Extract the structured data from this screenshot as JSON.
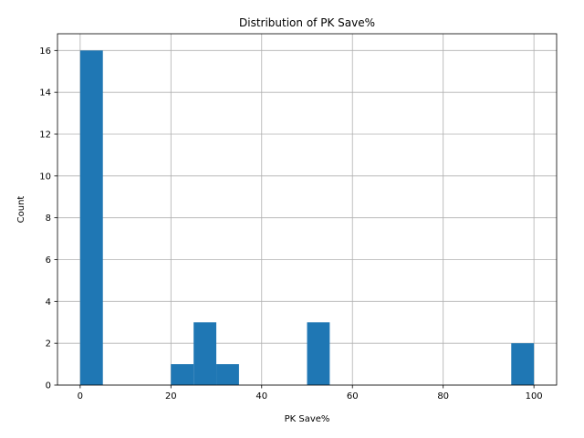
{
  "chart_data": {
    "type": "bar",
    "title": "Distribution of PK Save%",
    "xlabel": "PK Save%",
    "ylabel": "Count",
    "xlim": [
      -5,
      105
    ],
    "ylim": [
      0,
      16.8
    ],
    "xticks": [
      0,
      20,
      40,
      60,
      80,
      100
    ],
    "yticks": [
      0,
      2,
      4,
      6,
      8,
      10,
      12,
      14,
      16
    ],
    "grid": true,
    "bar_color": "#1f77b4",
    "bins": [
      {
        "x0": 0,
        "x1": 5,
        "count": 16
      },
      {
        "x0": 20,
        "x1": 25,
        "count": 1
      },
      {
        "x0": 25,
        "x1": 30,
        "count": 3
      },
      {
        "x0": 30,
        "x1": 35,
        "count": 1
      },
      {
        "x0": 50,
        "x1": 55,
        "count": 3
      },
      {
        "x0": 95,
        "x1": 100,
        "count": 2
      }
    ]
  }
}
